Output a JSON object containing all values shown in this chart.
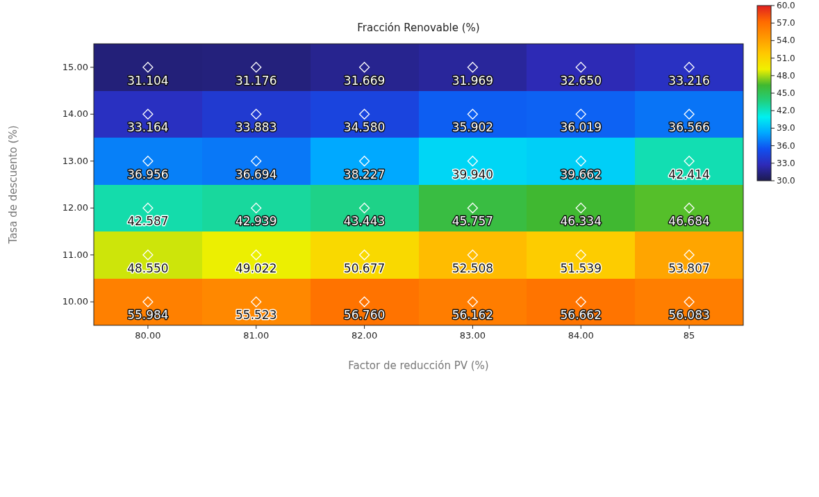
{
  "chart_data": {
    "type": "heatmap",
    "title": "Fracción Renovable (%)",
    "xlabel": "Factor de reducción PV (%)",
    "ylabel": "Tasa de descuento (%)",
    "categories": [
      "80.00",
      "81.00",
      "82.00",
      "83.00",
      "84.00",
      "85"
    ],
    "y_categories": [
      "15.00",
      "14.00",
      "13.00",
      "12.00",
      "11.00",
      "10.00"
    ],
    "cells": [
      [
        31.104,
        31.176,
        31.669,
        31.969,
        32.65,
        33.216
      ],
      [
        33.164,
        33.883,
        34.58,
        35.902,
        36.019,
        36.566
      ],
      [
        36.956,
        36.694,
        38.227,
        39.94,
        39.662,
        42.414
      ],
      [
        42.587,
        42.939,
        43.443,
        45.757,
        46.334,
        46.684
      ],
      [
        48.55,
        49.022,
        50.677,
        52.508,
        51.539,
        53.807
      ],
      [
        55.984,
        55.523,
        56.76,
        56.162,
        56.662,
        56.083
      ]
    ],
    "cell_labels": [
      [
        "31.104",
        "31.176",
        "31.669",
        "31.969",
        "32.650",
        "33.216"
      ],
      [
        "33.164",
        "33.883",
        "34.580",
        "35.902",
        "36.019",
        "36.566"
      ],
      [
        "36.956",
        "36.694",
        "38.227",
        "39.940",
        "39.662",
        "42.414"
      ],
      [
        "42.587",
        "42.939",
        "43.443",
        "45.757",
        "46.334",
        "46.684"
      ],
      [
        "48.550",
        "49.022",
        "50.677",
        "52.508",
        "51.539",
        "53.807"
      ],
      [
        "55.984",
        "55.523",
        "56.760",
        "56.162",
        "56.662",
        "56.083"
      ]
    ],
    "data_labels": true,
    "marker": "diamond",
    "clim": [
      30,
      60
    ],
    "cticks": [
      {
        "value": 30,
        "label": "30.0"
      },
      {
        "value": 33,
        "label": "33.0"
      },
      {
        "value": 36,
        "label": "36.0"
      },
      {
        "value": 39,
        "label": "39.0"
      },
      {
        "value": 42,
        "label": "42.0"
      },
      {
        "value": 45,
        "label": "45.0"
      },
      {
        "value": 48,
        "label": "48.0"
      },
      {
        "value": 51,
        "label": "51.0"
      },
      {
        "value": 54,
        "label": "54.0"
      },
      {
        "value": 57,
        "label": "57.0"
      },
      {
        "value": 60,
        "label": "60.0"
      }
    ]
  }
}
